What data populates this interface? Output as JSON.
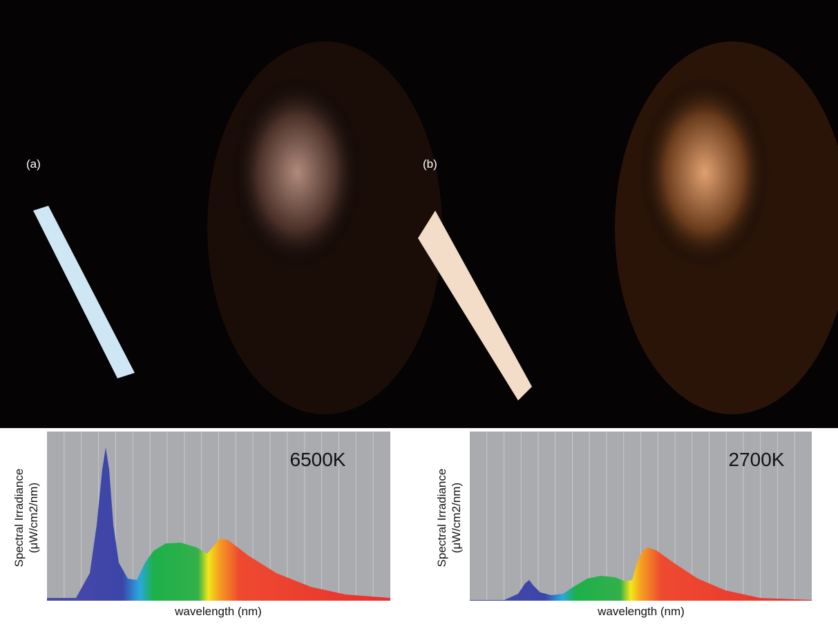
{
  "panels": [
    {
      "label": "(a)",
      "chart": {
        "annotation": "6500K",
        "y_label": [
          "Spectral Irradiance",
          "(μW/cm2/nm)"
        ],
        "x_label": "wavelength (nm)"
      }
    },
    {
      "label": "(b)",
      "chart": {
        "annotation": "2700K",
        "y_label": [
          "Spectral Irradiance",
          "(μW/cm2/nm)"
        ],
        "x_label": "wavelength (nm)"
      }
    }
  ]
}
